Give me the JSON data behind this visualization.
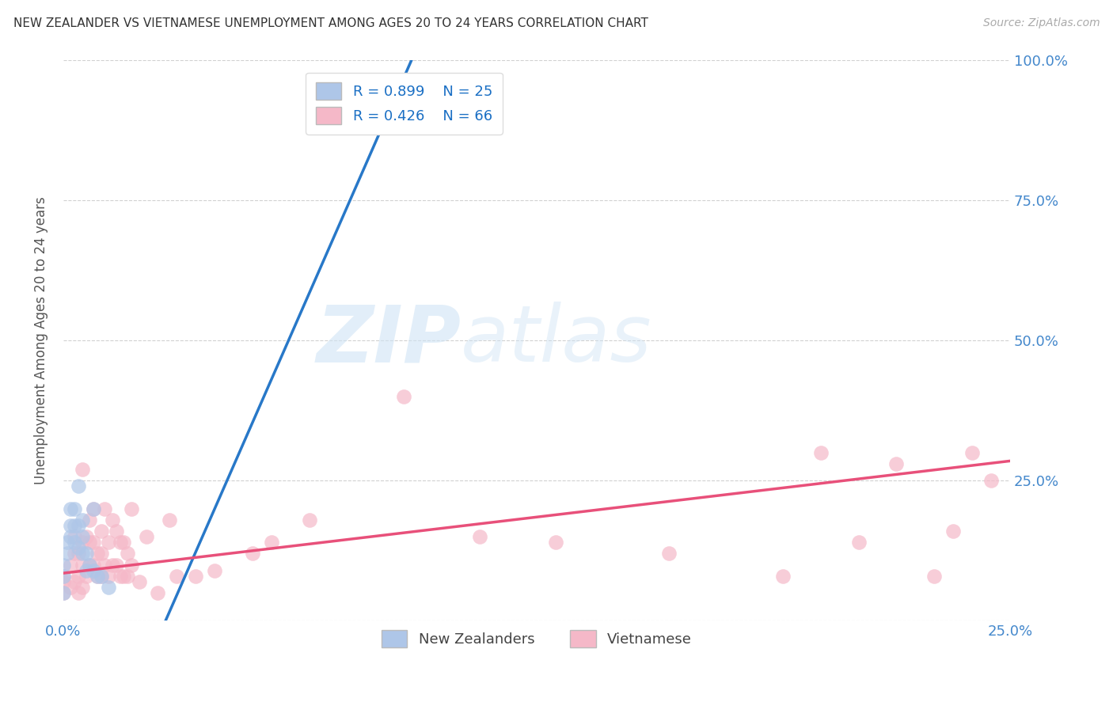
{
  "title": "NEW ZEALANDER VS VIETNAMESE UNEMPLOYMENT AMONG AGES 20 TO 24 YEARS CORRELATION CHART",
  "source": "Source: ZipAtlas.com",
  "ylabel_label": "Unemployment Among Ages 20 to 24 years",
  "xlim": [
    0.0,
    0.25
  ],
  "ylim": [
    0.0,
    1.0
  ],
  "nz_color": "#aec6e8",
  "viet_color": "#f5b8c8",
  "nz_line_color": "#2878c8",
  "viet_line_color": "#e8507a",
  "nz_R": 0.899,
  "nz_N": 25,
  "viet_R": 0.426,
  "viet_N": 66,
  "watermark_zip": "ZIP",
  "watermark_atlas": "atlas",
  "legend_nz": "New Zealanders",
  "legend_viet": "Vietnamese",
  "background_color": "#ffffff",
  "grid_color": "#cccccc",
  "nz_line_x0": 0.027,
  "nz_line_y0": 0.0,
  "nz_line_x1": 0.092,
  "nz_line_y1": 1.0,
  "viet_line_x0": 0.0,
  "viet_line_y0": 0.085,
  "viet_line_x1": 0.25,
  "viet_line_y1": 0.285,
  "nz_scatter_x": [
    0.0,
    0.0,
    0.0,
    0.001,
    0.001,
    0.002,
    0.002,
    0.002,
    0.003,
    0.003,
    0.003,
    0.004,
    0.004,
    0.004,
    0.005,
    0.005,
    0.005,
    0.006,
    0.006,
    0.007,
    0.008,
    0.008,
    0.009,
    0.01,
    0.012
  ],
  "nz_scatter_y": [
    0.05,
    0.08,
    0.1,
    0.12,
    0.14,
    0.15,
    0.17,
    0.2,
    0.14,
    0.17,
    0.2,
    0.13,
    0.17,
    0.24,
    0.12,
    0.15,
    0.18,
    0.09,
    0.12,
    0.1,
    0.09,
    0.2,
    0.08,
    0.08,
    0.06
  ],
  "viet_scatter_x": [
    0.0,
    0.0,
    0.0,
    0.002,
    0.002,
    0.003,
    0.003,
    0.003,
    0.004,
    0.004,
    0.004,
    0.005,
    0.005,
    0.005,
    0.005,
    0.006,
    0.006,
    0.007,
    0.007,
    0.007,
    0.008,
    0.008,
    0.008,
    0.009,
    0.009,
    0.01,
    0.01,
    0.01,
    0.011,
    0.011,
    0.012,
    0.012,
    0.013,
    0.013,
    0.014,
    0.014,
    0.015,
    0.015,
    0.016,
    0.016,
    0.017,
    0.017,
    0.018,
    0.018,
    0.02,
    0.022,
    0.025,
    0.028,
    0.03,
    0.035,
    0.04,
    0.05,
    0.055,
    0.065,
    0.09,
    0.11,
    0.13,
    0.16,
    0.19,
    0.2,
    0.21,
    0.22,
    0.23,
    0.235,
    0.24,
    0.245
  ],
  "viet_scatter_y": [
    0.05,
    0.07,
    0.08,
    0.06,
    0.1,
    0.07,
    0.12,
    0.15,
    0.05,
    0.08,
    0.12,
    0.06,
    0.1,
    0.14,
    0.27,
    0.08,
    0.15,
    0.1,
    0.14,
    0.18,
    0.1,
    0.14,
    0.2,
    0.08,
    0.12,
    0.08,
    0.12,
    0.16,
    0.1,
    0.2,
    0.08,
    0.14,
    0.1,
    0.18,
    0.1,
    0.16,
    0.08,
    0.14,
    0.08,
    0.14,
    0.08,
    0.12,
    0.1,
    0.2,
    0.07,
    0.15,
    0.05,
    0.18,
    0.08,
    0.08,
    0.09,
    0.12,
    0.14,
    0.18,
    0.4,
    0.15,
    0.14,
    0.12,
    0.08,
    0.3,
    0.14,
    0.28,
    0.08,
    0.16,
    0.3,
    0.25
  ]
}
